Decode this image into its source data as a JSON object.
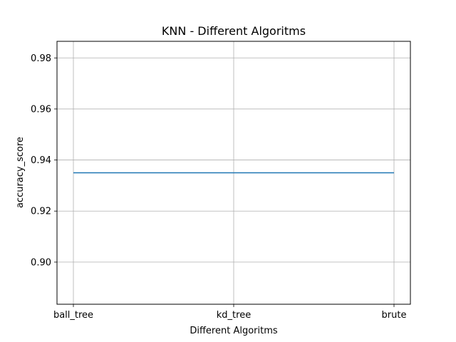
{
  "chart_data": {
    "type": "line",
    "title": "KNN - Different Algoritms",
    "xlabel": "Different Algoritms",
    "ylabel": "accuracy_score",
    "categories": [
      "ball_tree",
      "kd_tree",
      "brute"
    ],
    "series": [
      {
        "values": [
          0.935,
          0.935,
          0.935
        ],
        "color": "#1f77b4"
      }
    ],
    "ylim": [
      0.8835,
      0.9865
    ],
    "yticks": [
      0.9,
      0.92,
      0.94,
      0.96,
      0.98
    ],
    "ytick_labels": [
      "0.90",
      "0.92",
      "0.94",
      "0.96",
      "0.98"
    ],
    "grid": true,
    "legend": "none"
  }
}
